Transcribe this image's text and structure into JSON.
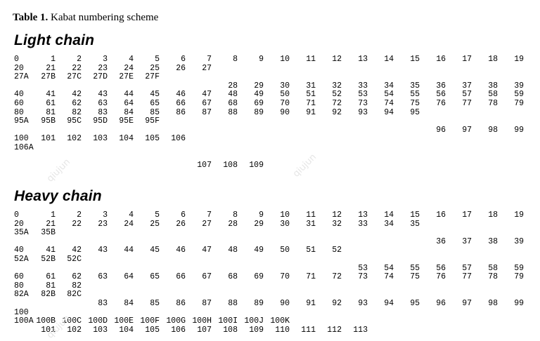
{
  "caption": {
    "label": "Table 1.",
    "text": "Kabat numbering scheme"
  },
  "watermark": "qiujun",
  "sections": [
    {
      "title": "Light chain",
      "rows": [
        [
          [
            "0",
            0
          ],
          [
            "1",
            1
          ],
          [
            "2",
            2
          ],
          [
            "3",
            3
          ],
          [
            "4",
            4
          ],
          [
            "5",
            5
          ],
          [
            "6",
            6
          ],
          [
            "7",
            7
          ],
          [
            "8",
            8
          ],
          [
            "9",
            9
          ],
          [
            "10",
            10
          ],
          [
            "11",
            11
          ],
          [
            "12",
            12
          ],
          [
            "13",
            13
          ],
          [
            "14",
            14
          ],
          [
            "15",
            15
          ],
          [
            "16",
            16
          ],
          [
            "17",
            17
          ],
          [
            "18",
            18
          ],
          [
            "19",
            19
          ]
        ],
        [
          [
            "20",
            0
          ],
          [
            "21",
            1
          ],
          [
            "22",
            2
          ],
          [
            "23",
            3
          ],
          [
            "24",
            4
          ],
          [
            "25",
            5
          ],
          [
            "26",
            6
          ],
          [
            "27",
            7
          ]
        ],
        [
          [
            "27A",
            0
          ],
          [
            "27B",
            1
          ],
          [
            "27C",
            2
          ],
          [
            "27D",
            3
          ],
          [
            "27E",
            4
          ],
          [
            "27F",
            5
          ]
        ],
        [
          [
            "28",
            8
          ],
          [
            "29",
            9
          ],
          [
            "30",
            10
          ],
          [
            "31",
            11
          ],
          [
            "32",
            12
          ],
          [
            "33",
            13
          ],
          [
            "34",
            14
          ],
          [
            "35",
            15
          ],
          [
            "36",
            16
          ],
          [
            "37",
            17
          ],
          [
            "38",
            18
          ],
          [
            "39",
            19
          ]
        ],
        [
          [
            "40",
            0
          ],
          [
            "41",
            1
          ],
          [
            "42",
            2
          ],
          [
            "43",
            3
          ],
          [
            "44",
            4
          ],
          [
            "45",
            5
          ],
          [
            "46",
            6
          ],
          [
            "47",
            7
          ],
          [
            "48",
            8
          ],
          [
            "49",
            9
          ],
          [
            "50",
            10
          ],
          [
            "51",
            11
          ],
          [
            "52",
            12
          ],
          [
            "53",
            13
          ],
          [
            "54",
            14
          ],
          [
            "55",
            15
          ],
          [
            "56",
            16
          ],
          [
            "57",
            17
          ],
          [
            "58",
            18
          ],
          [
            "59",
            19
          ]
        ],
        [
          [
            "60",
            0
          ],
          [
            "61",
            1
          ],
          [
            "62",
            2
          ],
          [
            "63",
            3
          ],
          [
            "64",
            4
          ],
          [
            "65",
            5
          ],
          [
            "66",
            6
          ],
          [
            "67",
            7
          ],
          [
            "68",
            8
          ],
          [
            "69",
            9
          ],
          [
            "70",
            10
          ],
          [
            "71",
            11
          ],
          [
            "72",
            12
          ],
          [
            "73",
            13
          ],
          [
            "74",
            14
          ],
          [
            "75",
            15
          ],
          [
            "76",
            16
          ],
          [
            "77",
            17
          ],
          [
            "78",
            18
          ],
          [
            "79",
            19
          ]
        ],
        [
          [
            "80",
            0
          ],
          [
            "81",
            1
          ],
          [
            "82",
            2
          ],
          [
            "83",
            3
          ],
          [
            "84",
            4
          ],
          [
            "85",
            5
          ],
          [
            "86",
            6
          ],
          [
            "87",
            7
          ],
          [
            "88",
            8
          ],
          [
            "89",
            9
          ],
          [
            "90",
            10
          ],
          [
            "91",
            11
          ],
          [
            "92",
            12
          ],
          [
            "93",
            13
          ],
          [
            "94",
            14
          ],
          [
            "95",
            15
          ]
        ],
        [
          [
            "95A",
            0
          ],
          [
            "95B",
            1
          ],
          [
            "95C",
            2
          ],
          [
            "95D",
            3
          ],
          [
            "95E",
            4
          ],
          [
            "95F",
            5
          ]
        ],
        [
          [
            "96",
            16
          ],
          [
            "97",
            17
          ],
          [
            "98",
            18
          ],
          [
            "99",
            19
          ]
        ],
        [
          [
            "100",
            0
          ],
          [
            "101",
            1
          ],
          [
            "102",
            2
          ],
          [
            "103",
            3
          ],
          [
            "104",
            4
          ],
          [
            "105",
            5
          ],
          [
            "106",
            6
          ]
        ],
        [
          [
            "106A",
            0
          ]
        ],
        [],
        [
          [
            "107",
            7
          ],
          [
            "108",
            8
          ],
          [
            "109",
            9
          ]
        ]
      ]
    },
    {
      "title": "Heavy chain",
      "rows": [
        [
          [
            "0",
            0
          ],
          [
            "1",
            1
          ],
          [
            "2",
            2
          ],
          [
            "3",
            3
          ],
          [
            "4",
            4
          ],
          [
            "5",
            5
          ],
          [
            "6",
            6
          ],
          [
            "7",
            7
          ],
          [
            "8",
            8
          ],
          [
            "9",
            9
          ],
          [
            "10",
            10
          ],
          [
            "11",
            11
          ],
          [
            "12",
            12
          ],
          [
            "13",
            13
          ],
          [
            "14",
            14
          ],
          [
            "15",
            15
          ],
          [
            "16",
            16
          ],
          [
            "17",
            17
          ],
          [
            "18",
            18
          ],
          [
            "19",
            19
          ]
        ],
        [
          [
            "20",
            0
          ],
          [
            "21",
            1
          ],
          [
            "22",
            2
          ],
          [
            "23",
            3
          ],
          [
            "24",
            4
          ],
          [
            "25",
            5
          ],
          [
            "26",
            6
          ],
          [
            "27",
            7
          ],
          [
            "28",
            8
          ],
          [
            "29",
            9
          ],
          [
            "30",
            10
          ],
          [
            "31",
            11
          ],
          [
            "32",
            12
          ],
          [
            "33",
            13
          ],
          [
            "34",
            14
          ],
          [
            "35",
            15
          ]
        ],
        [
          [
            "35A",
            0
          ],
          [
            "35B",
            1
          ]
        ],
        [
          [
            "36",
            16
          ],
          [
            "37",
            17
          ],
          [
            "38",
            18
          ],
          [
            "39",
            19
          ]
        ],
        [
          [
            "40",
            0
          ],
          [
            "41",
            1
          ],
          [
            "42",
            2
          ],
          [
            "43",
            3
          ],
          [
            "44",
            4
          ],
          [
            "45",
            5
          ],
          [
            "46",
            6
          ],
          [
            "47",
            7
          ],
          [
            "48",
            8
          ],
          [
            "49",
            9
          ],
          [
            "50",
            10
          ],
          [
            "51",
            11
          ],
          [
            "52",
            12
          ]
        ],
        [
          [
            "52A",
            0
          ],
          [
            "52B",
            1
          ],
          [
            "52C",
            2
          ]
        ],
        [
          [
            "53",
            13
          ],
          [
            "54",
            14
          ],
          [
            "55",
            15
          ],
          [
            "56",
            16
          ],
          [
            "57",
            17
          ],
          [
            "58",
            18
          ],
          [
            "59",
            19
          ]
        ],
        [
          [
            "60",
            0
          ],
          [
            "61",
            1
          ],
          [
            "62",
            2
          ],
          [
            "63",
            3
          ],
          [
            "64",
            4
          ],
          [
            "65",
            5
          ],
          [
            "66",
            6
          ],
          [
            "67",
            7
          ],
          [
            "68",
            8
          ],
          [
            "69",
            9
          ],
          [
            "70",
            10
          ],
          [
            "71",
            11
          ],
          [
            "72",
            12
          ],
          [
            "73",
            13
          ],
          [
            "74",
            14
          ],
          [
            "75",
            15
          ],
          [
            "76",
            16
          ],
          [
            "77",
            17
          ],
          [
            "78",
            18
          ],
          [
            "79",
            19
          ]
        ],
        [
          [
            "80",
            0
          ],
          [
            "81",
            1
          ],
          [
            "82",
            2
          ]
        ],
        [
          [
            "82A",
            0
          ],
          [
            "82B",
            1
          ],
          [
            "82C",
            2
          ]
        ],
        [
          [
            "83",
            3
          ],
          [
            "84",
            4
          ],
          [
            "85",
            5
          ],
          [
            "86",
            6
          ],
          [
            "87",
            7
          ],
          [
            "88",
            8
          ],
          [
            "89",
            9
          ],
          [
            "90",
            10
          ],
          [
            "91",
            11
          ],
          [
            "92",
            12
          ],
          [
            "93",
            13
          ],
          [
            "94",
            14
          ],
          [
            "95",
            15
          ],
          [
            "96",
            16
          ],
          [
            "97",
            17
          ],
          [
            "98",
            18
          ],
          [
            "99",
            19
          ]
        ],
        [
          [
            "100",
            0
          ]
        ],
        [
          [
            "100A",
            0
          ],
          [
            "100B",
            1
          ],
          [
            "100C",
            2
          ],
          [
            "100D",
            3
          ],
          [
            "100E",
            4
          ],
          [
            "100F",
            5
          ],
          [
            "100G",
            6
          ],
          [
            "100H",
            7
          ],
          [
            "100I",
            8
          ],
          [
            "100J",
            9
          ],
          [
            "100K",
            10
          ]
        ],
        [
          [
            "101",
            1
          ],
          [
            "102",
            2
          ],
          [
            "103",
            3
          ],
          [
            "104",
            4
          ],
          [
            "105",
            5
          ],
          [
            "106",
            6
          ],
          [
            "107",
            7
          ],
          [
            "108",
            8
          ],
          [
            "109",
            9
          ],
          [
            "110",
            10
          ],
          [
            "111",
            11
          ],
          [
            "112",
            12
          ],
          [
            "113",
            13
          ]
        ]
      ]
    }
  ]
}
